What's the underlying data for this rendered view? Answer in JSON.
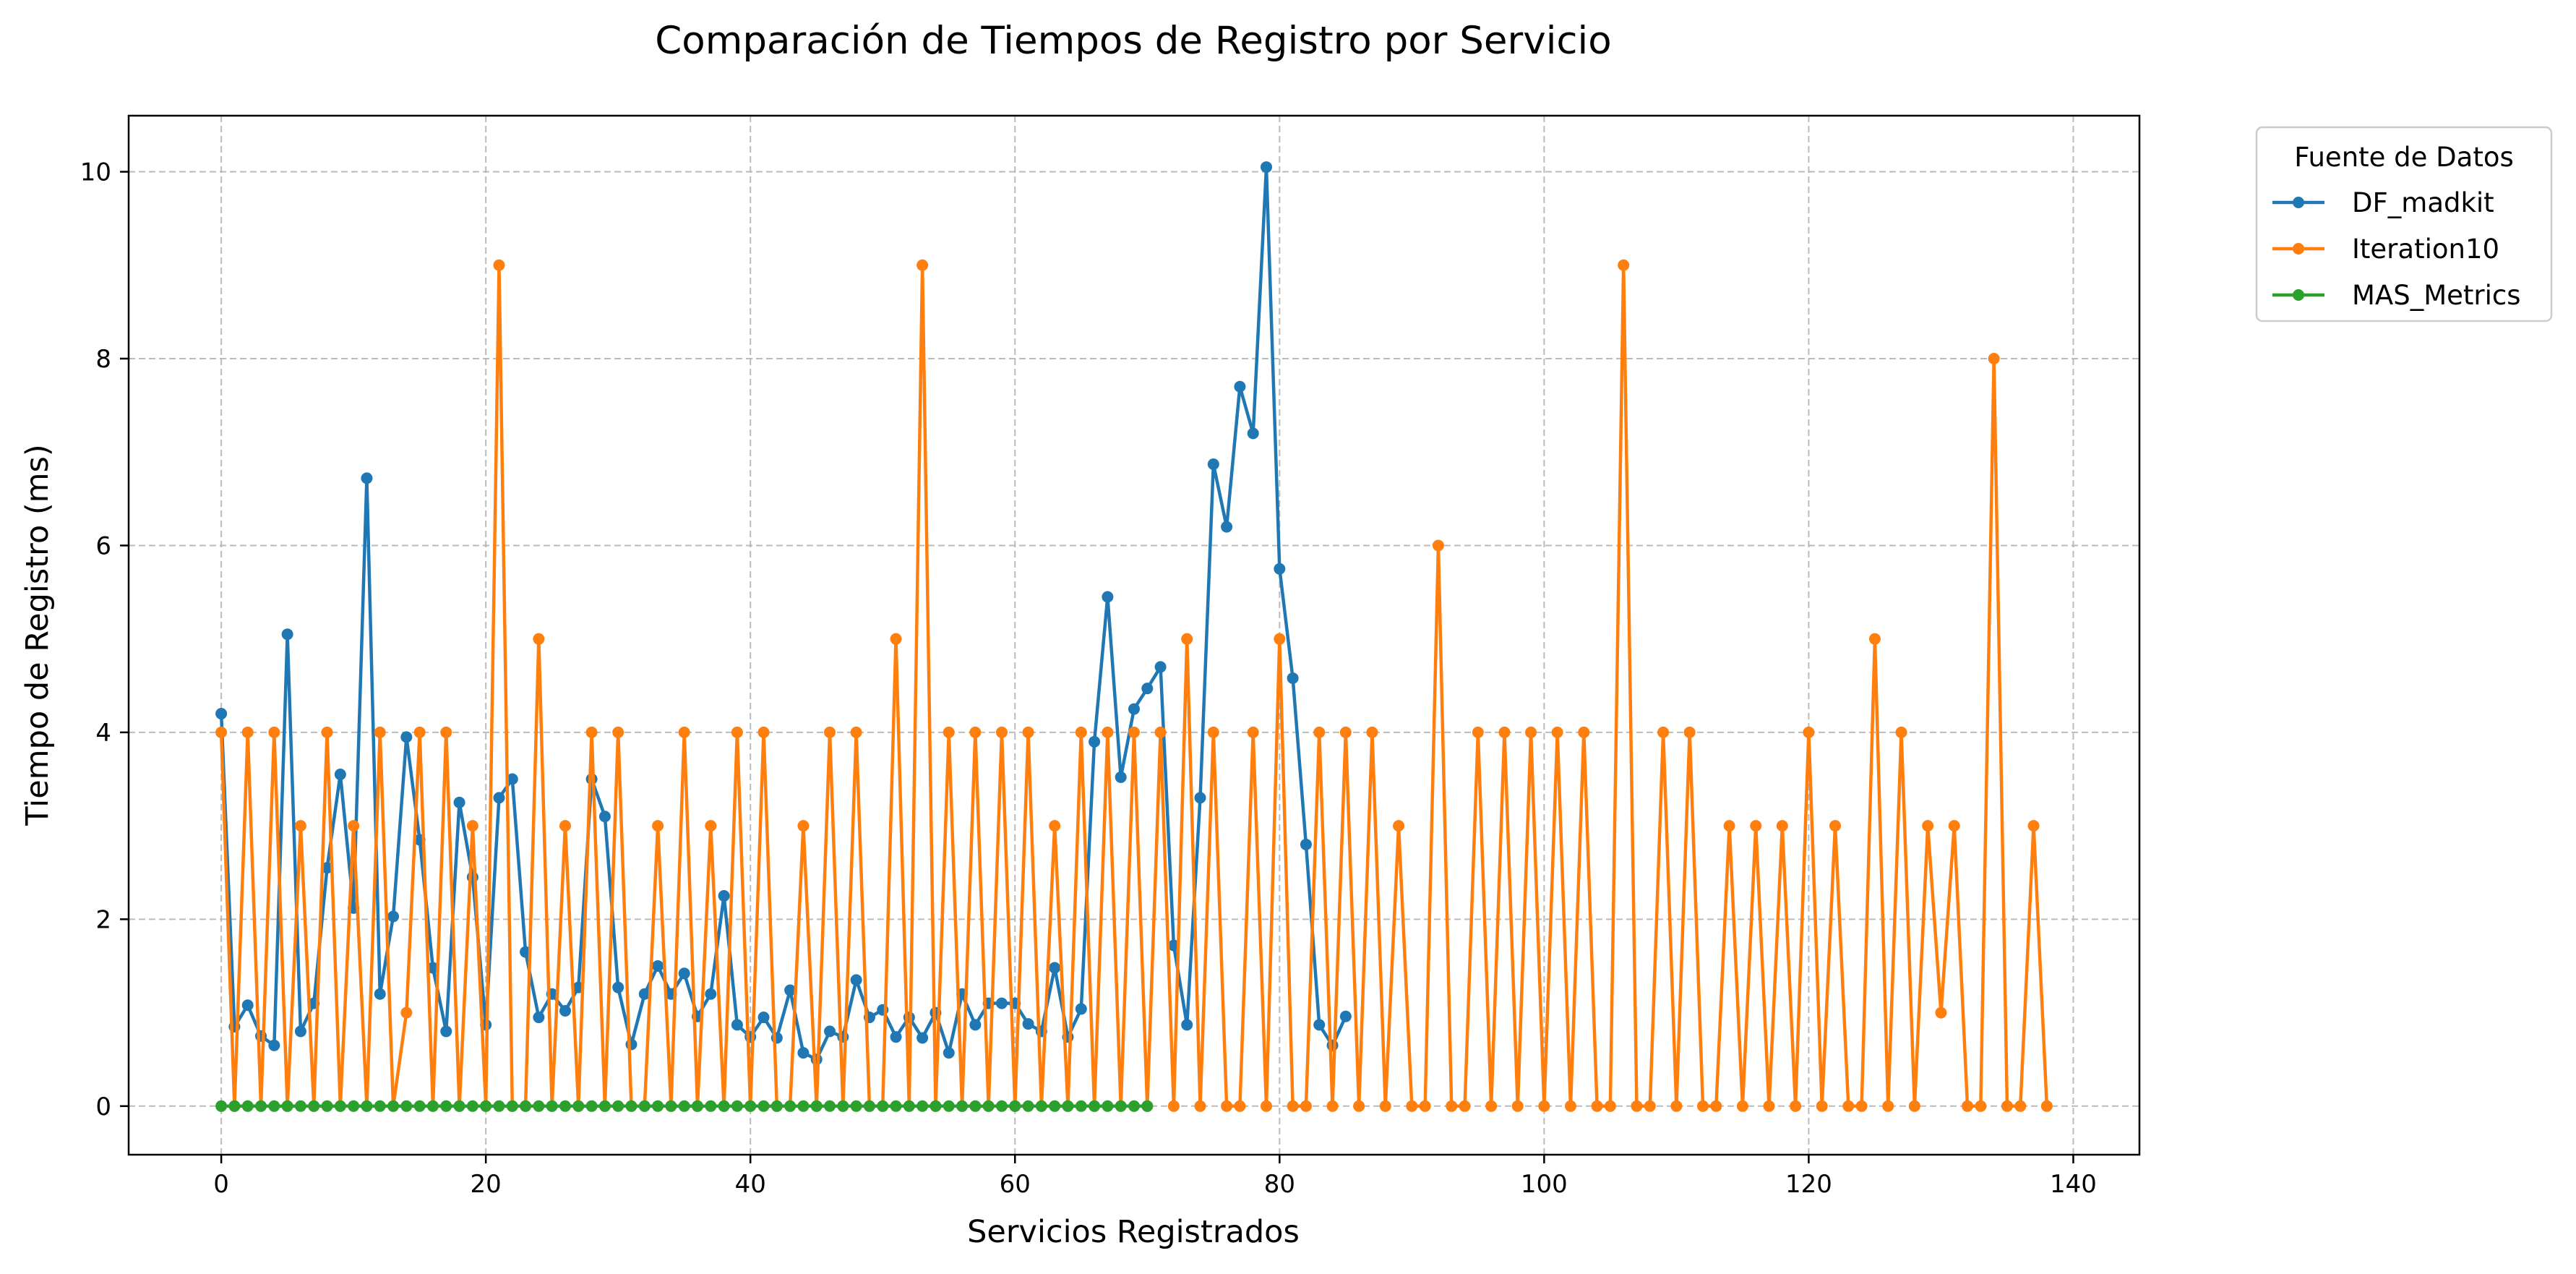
{
  "chart_data": {
    "type": "line",
    "title": "Comparación de Tiempos de Registro por Servicio",
    "xlabel": "Servicios Registrados",
    "ylabel": "Tiempo de Registro (ms)",
    "xlim": [
      -7,
      145
    ],
    "ylim": [
      -0.52,
      10.6
    ],
    "xticks": [
      0,
      20,
      40,
      60,
      80,
      100,
      120,
      140
    ],
    "yticks": [
      0,
      2,
      4,
      6,
      8,
      10
    ],
    "grid": true,
    "legend": {
      "title": "Fuente de Datos",
      "placement": "outside-top-right"
    },
    "series": [
      {
        "name": "DF_madkit",
        "color": "#1f77b4",
        "values": [
          4.2,
          0.85,
          1.08,
          0.75,
          0.65,
          5.05,
          0.8,
          1.1,
          2.55,
          3.55,
          2.12,
          6.72,
          1.2,
          2.03,
          3.95,
          2.85,
          1.48,
          0.8,
          3.25,
          2.45,
          0.87,
          3.3,
          3.5,
          1.65,
          0.95,
          1.2,
          1.02,
          1.27,
          3.5,
          3.1,
          1.27,
          0.66,
          1.2,
          1.5,
          1.2,
          1.42,
          0.96,
          1.2,
          2.25,
          0.87,
          0.74,
          0.95,
          0.73,
          1.24,
          0.57,
          0.5,
          0.8,
          0.74,
          1.35,
          0.95,
          1.03,
          0.74,
          0.95,
          0.73,
          1.0,
          0.57,
          1.2,
          0.87,
          1.1,
          1.1,
          1.1,
          0.88,
          0.8,
          1.48,
          0.74,
          1.04,
          3.9,
          5.45,
          3.52,
          4.25,
          4.47,
          4.7,
          1.72,
          0.87,
          3.3,
          6.87,
          6.2,
          7.7,
          7.2,
          10.05,
          5.75,
          4.58,
          2.8,
          0.87,
          0.65,
          0.96
        ]
      },
      {
        "name": "Iteration10",
        "color": "#ff7f0e",
        "values": [
          4,
          0,
          4,
          0,
          4,
          0,
          3,
          0,
          4,
          0,
          3,
          0,
          4,
          0,
          1,
          4,
          0,
          4,
          0,
          3,
          0,
          9,
          0,
          0,
          5,
          0,
          3,
          0,
          4,
          0,
          4,
          0,
          0,
          3,
          0,
          4,
          0,
          3,
          0,
          4,
          0,
          4,
          0,
          0,
          3,
          0,
          4,
          0,
          4,
          0,
          0,
          5,
          0,
          9,
          0,
          4,
          0,
          4,
          0,
          4,
          0,
          4,
          0,
          3,
          0,
          4,
          0,
          4,
          0,
          4,
          0,
          4,
          0,
          5,
          0,
          4,
          0,
          0,
          4,
          0,
          5,
          0,
          0,
          4,
          0,
          4,
          0,
          4,
          0,
          3,
          0,
          0,
          6,
          0,
          0,
          4,
          0,
          4,
          0,
          4,
          0,
          4,
          0,
          4,
          0,
          0,
          9,
          0,
          0,
          4,
          0,
          4,
          0,
          0,
          3,
          0,
          3,
          0,
          3,
          0,
          4,
          0,
          3,
          0,
          0,
          5,
          0,
          4,
          0,
          3,
          1,
          3,
          0,
          0,
          8,
          0,
          0,
          3,
          0
        ]
      },
      {
        "name": "MAS_Metrics",
        "color": "#2ca02c",
        "values": [
          0,
          0,
          0,
          0,
          0,
          0,
          0,
          0,
          0,
          0,
          0,
          0,
          0,
          0,
          0,
          0,
          0,
          0,
          0,
          0,
          0,
          0,
          0,
          0,
          0,
          0,
          0,
          0,
          0,
          0,
          0,
          0,
          0,
          0,
          0,
          0,
          0,
          0,
          0,
          0,
          0,
          0,
          0,
          0,
          0,
          0,
          0,
          0,
          0,
          0,
          0,
          0,
          0,
          0,
          0,
          0,
          0,
          0,
          0,
          0,
          0,
          0,
          0,
          0,
          0,
          0,
          0,
          0,
          0,
          0,
          0
        ]
      }
    ]
  }
}
